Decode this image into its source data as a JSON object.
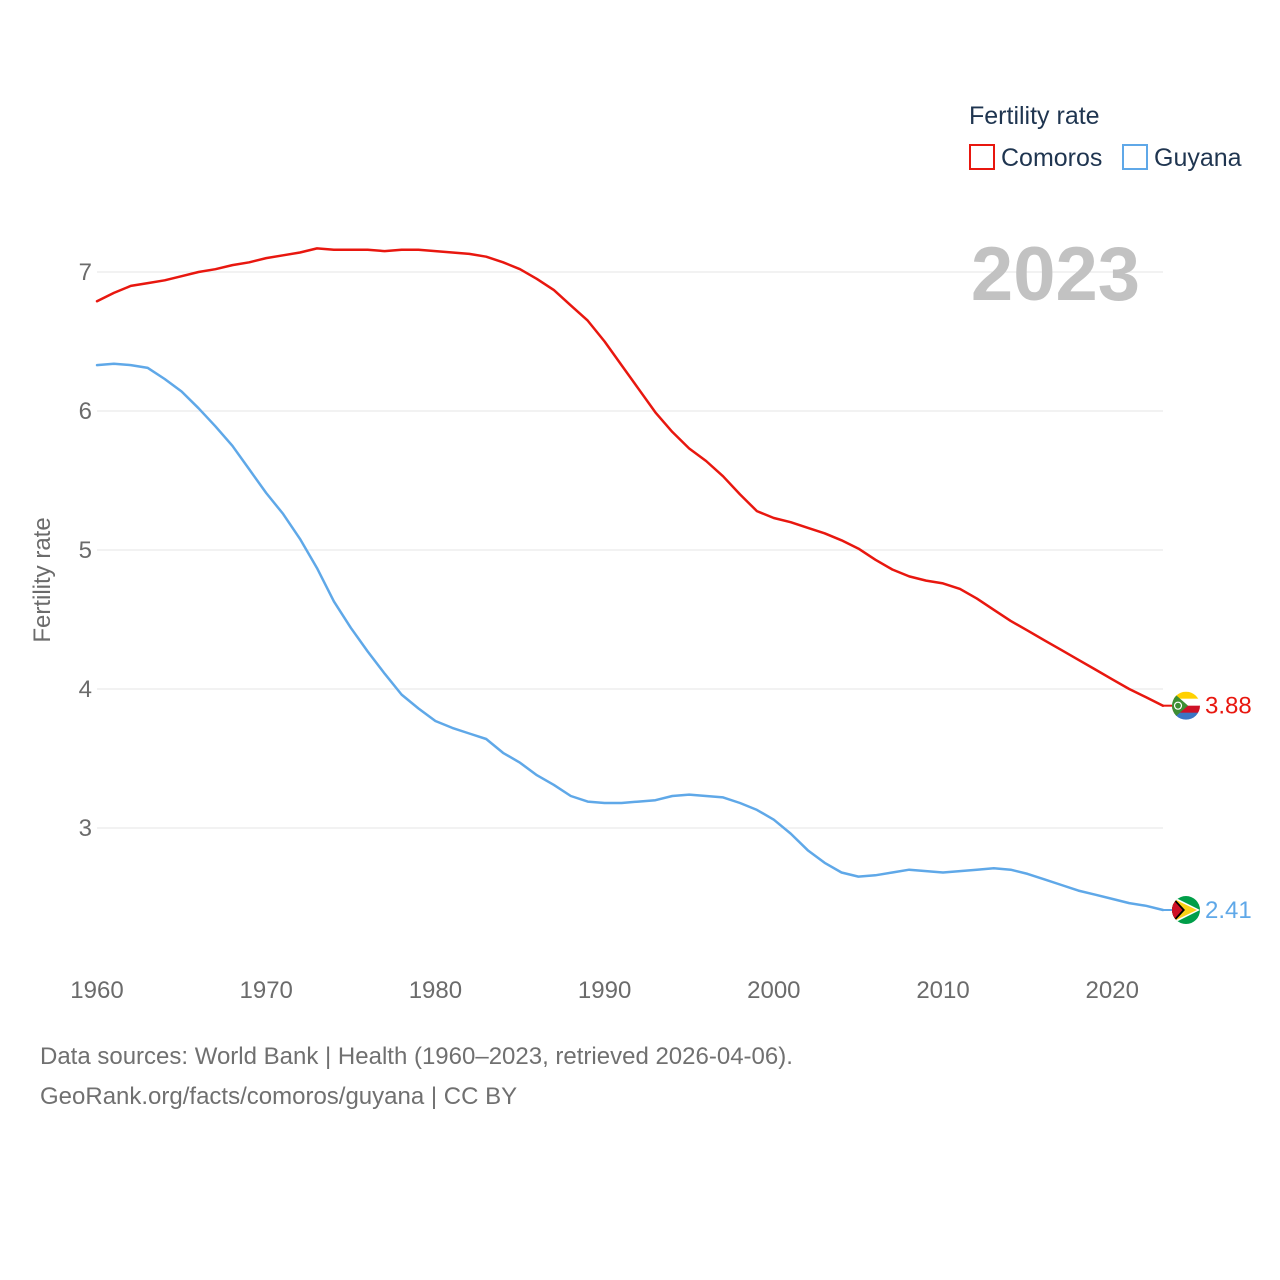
{
  "chart_data": {
    "type": "line",
    "year_label": "2023",
    "ylabel": "Fertility rate",
    "xlabel": "",
    "xlim": [
      1960,
      2023
    ],
    "ylim": [
      2.3,
      7.35
    ],
    "x_ticks": [
      1960,
      1970,
      1980,
      1990,
      2000,
      2010,
      2020
    ],
    "y_ticks": [
      3,
      4,
      5,
      6,
      7
    ],
    "legend": {
      "title": "Fertility rate",
      "position": "top-right"
    },
    "series": [
      {
        "name": "Comoros",
        "color": "#e8170f",
        "end_label": "3.88",
        "flag": "comoros-flag",
        "x": [
          1960,
          1961,
          1962,
          1963,
          1964,
          1965,
          1966,
          1967,
          1968,
          1969,
          1970,
          1971,
          1972,
          1973,
          1974,
          1975,
          1976,
          1977,
          1978,
          1979,
          1980,
          1981,
          1982,
          1983,
          1984,
          1985,
          1986,
          1987,
          1988,
          1989,
          1990,
          1991,
          1992,
          1993,
          1994,
          1995,
          1996,
          1997,
          1998,
          1999,
          2000,
          2001,
          2002,
          2003,
          2004,
          2005,
          2006,
          2007,
          2008,
          2009,
          2010,
          2011,
          2012,
          2013,
          2014,
          2015,
          2016,
          2017,
          2018,
          2019,
          2020,
          2021,
          2022,
          2023
        ],
        "values": [
          6.79,
          6.85,
          6.9,
          6.92,
          6.94,
          6.97,
          7.0,
          7.02,
          7.05,
          7.07,
          7.1,
          7.12,
          7.14,
          7.17,
          7.16,
          7.16,
          7.16,
          7.15,
          7.16,
          7.16,
          7.15,
          7.14,
          7.13,
          7.11,
          7.07,
          7.02,
          6.95,
          6.87,
          6.76,
          6.65,
          6.5,
          6.33,
          6.16,
          5.99,
          5.85,
          5.73,
          5.64,
          5.53,
          5.4,
          5.28,
          5.23,
          5.2,
          5.16,
          5.12,
          5.07,
          5.01,
          4.93,
          4.86,
          4.81,
          4.78,
          4.76,
          4.72,
          4.65,
          4.57,
          4.49,
          4.42,
          4.35,
          4.28,
          4.21,
          4.14,
          4.07,
          4.0,
          3.94,
          3.88
        ]
      },
      {
        "name": "Guyana",
        "color": "#5fa8e8",
        "end_label": "2.41",
        "flag": "guyana-flag",
        "x": [
          1960,
          1961,
          1962,
          1963,
          1964,
          1965,
          1966,
          1967,
          1968,
          1969,
          1970,
          1971,
          1972,
          1973,
          1974,
          1975,
          1976,
          1977,
          1978,
          1979,
          1980,
          1981,
          1982,
          1983,
          1984,
          1985,
          1986,
          1987,
          1988,
          1989,
          1990,
          1991,
          1992,
          1993,
          1994,
          1995,
          1996,
          1997,
          1998,
          1999,
          2000,
          2001,
          2002,
          2003,
          2004,
          2005,
          2006,
          2007,
          2008,
          2009,
          2010,
          2011,
          2012,
          2013,
          2014,
          2015,
          2016,
          2017,
          2018,
          2019,
          2020,
          2021,
          2022,
          2023
        ],
        "values": [
          6.33,
          6.34,
          6.33,
          6.31,
          6.23,
          6.14,
          6.02,
          5.89,
          5.75,
          5.58,
          5.41,
          5.26,
          5.08,
          4.87,
          4.63,
          4.44,
          4.27,
          4.11,
          3.96,
          3.86,
          3.77,
          3.72,
          3.68,
          3.64,
          3.54,
          3.47,
          3.38,
          3.31,
          3.23,
          3.19,
          3.18,
          3.18,
          3.19,
          3.2,
          3.23,
          3.24,
          3.23,
          3.22,
          3.18,
          3.13,
          3.06,
          2.96,
          2.84,
          2.75,
          2.68,
          2.65,
          2.66,
          2.68,
          2.7,
          2.69,
          2.68,
          2.69,
          2.7,
          2.71,
          2.7,
          2.67,
          2.63,
          2.59,
          2.55,
          2.52,
          2.49,
          2.46,
          2.44,
          2.41
        ]
      }
    ]
  },
  "footer": {
    "line1": "Data sources: World Bank | Health (1960–2023, retrieved 2026-04-06).",
    "line2": "GeoRank.org/facts/comoros/guyana | CC BY"
  }
}
